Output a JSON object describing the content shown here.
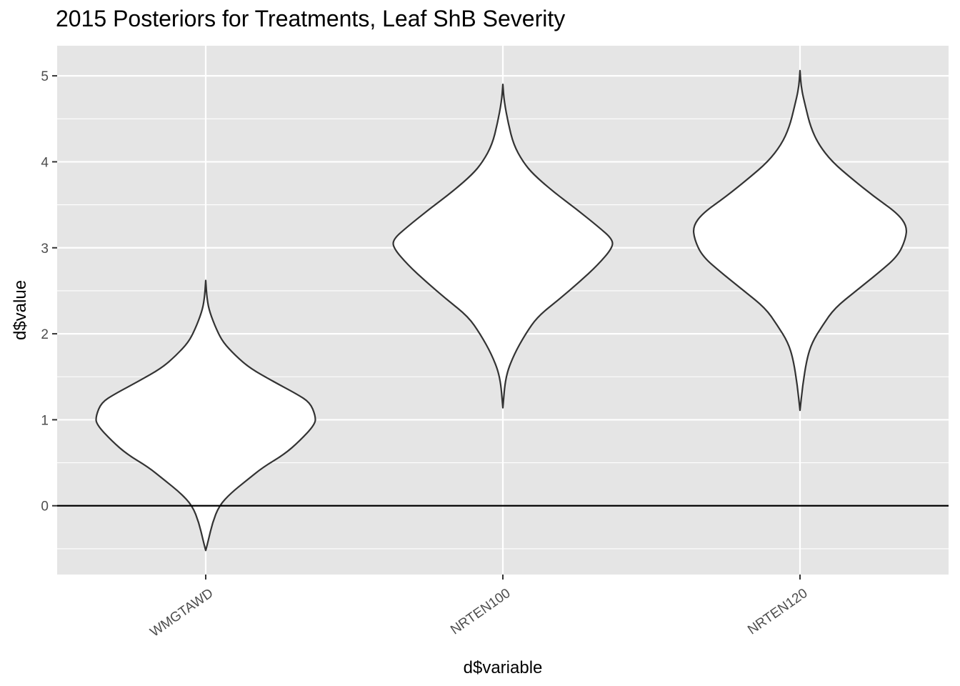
{
  "chart_data": {
    "type": "violin",
    "title": "2015 Posteriors for Treatments, Leaf ShB Severity",
    "xlabel": "d$variable",
    "ylabel": "d$value",
    "categories": [
      "WMGTAWD",
      "NRTEN100",
      "NRTEN120"
    ],
    "yticks": [
      0,
      1,
      2,
      3,
      4,
      5
    ],
    "ylim": [
      -0.8,
      5.35
    ],
    "reference_line": 0,
    "grid": true,
    "colors": {
      "panel": "#e5e5e5",
      "grid": "#ffffff",
      "violin_fill": "#ffffff",
      "violin_stroke": "#333333",
      "ref_line": "#000000"
    },
    "violins": [
      {
        "name": "WMGTAWD",
        "min": -0.52,
        "max": 2.62,
        "profile": [
          [
            -0.52,
            0.0
          ],
          [
            -0.4,
            0.02
          ],
          [
            -0.2,
            0.05
          ],
          [
            0.0,
            0.1
          ],
          [
            0.15,
            0.19
          ],
          [
            0.3,
            0.31
          ],
          [
            0.45,
            0.43
          ],
          [
            0.6,
            0.59
          ],
          [
            0.75,
            0.7
          ],
          [
            0.95,
            0.82
          ],
          [
            1.05,
            0.82
          ],
          [
            1.2,
            0.78
          ],
          [
            1.3,
            0.68
          ],
          [
            1.45,
            0.5
          ],
          [
            1.6,
            0.33
          ],
          [
            1.75,
            0.22
          ],
          [
            1.9,
            0.13
          ],
          [
            2.05,
            0.08
          ],
          [
            2.25,
            0.03
          ],
          [
            2.4,
            0.01
          ],
          [
            2.62,
            0.0
          ]
        ]
      },
      {
        "name": "NRTEN100",
        "min": 1.14,
        "max": 4.9,
        "profile": [
          [
            1.14,
            0.0
          ],
          [
            1.5,
            0.02
          ],
          [
            1.75,
            0.08
          ],
          [
            2.0,
            0.17
          ],
          [
            2.2,
            0.26
          ],
          [
            2.4,
            0.42
          ],
          [
            2.6,
            0.57
          ],
          [
            2.8,
            0.71
          ],
          [
            3.0,
            0.82
          ],
          [
            3.1,
            0.82
          ],
          [
            3.25,
            0.71
          ],
          [
            3.45,
            0.55
          ],
          [
            3.65,
            0.38
          ],
          [
            3.85,
            0.23
          ],
          [
            4.0,
            0.15
          ],
          [
            4.2,
            0.08
          ],
          [
            4.45,
            0.04
          ],
          [
            4.7,
            0.01
          ],
          [
            4.9,
            0.0
          ]
        ]
      },
      {
        "name": "NRTEN120",
        "min": 1.11,
        "max": 5.06,
        "profile": [
          [
            1.11,
            0.0
          ],
          [
            1.4,
            0.02
          ],
          [
            1.7,
            0.05
          ],
          [
            1.9,
            0.09
          ],
          [
            2.1,
            0.17
          ],
          [
            2.3,
            0.26
          ],
          [
            2.5,
            0.42
          ],
          [
            2.7,
            0.58
          ],
          [
            2.9,
            0.73
          ],
          [
            3.1,
            0.79
          ],
          [
            3.25,
            0.8
          ],
          [
            3.4,
            0.73
          ],
          [
            3.6,
            0.55
          ],
          [
            3.8,
            0.39
          ],
          [
            4.0,
            0.24
          ],
          [
            4.2,
            0.14
          ],
          [
            4.4,
            0.08
          ],
          [
            4.65,
            0.04
          ],
          [
            4.85,
            0.01
          ],
          [
            5.06,
            0.0
          ]
        ]
      }
    ]
  }
}
